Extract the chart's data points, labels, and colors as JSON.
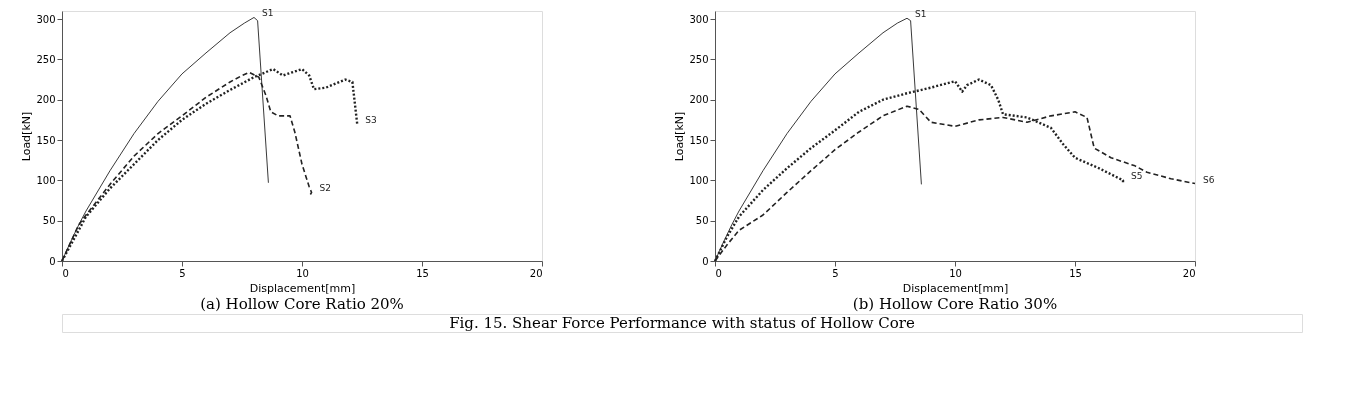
{
  "chart_data": [
    {
      "type": "line",
      "title": "(a)  Hollow  Core  Ratio  20%",
      "xlabel": "Displacement[mm]",
      "ylabel": "Load[kN]",
      "xlim": [
        0,
        20
      ],
      "ylim": [
        0,
        310
      ],
      "xticks": [
        0,
        5,
        10,
        15,
        20
      ],
      "yticks": [
        0,
        50,
        100,
        150,
        200,
        250,
        300
      ],
      "grid": false,
      "marker": "none",
      "series": [
        {
          "name": "S1",
          "color": "#222222",
          "line_style": "solid",
          "x": [
            0,
            0.3,
            0.7,
            1,
            2,
            3,
            4,
            5,
            6,
            7,
            7.6,
            8,
            8.15,
            8.6
          ],
          "values": [
            0,
            20,
            45,
            62,
            112,
            158,
            198,
            232,
            258,
            283,
            295,
            302,
            298,
            97
          ]
        },
        {
          "name": "S2",
          "color": "#222222",
          "line_style": "dashed",
          "x": [
            0,
            0.7,
            1,
            2,
            3,
            4,
            5,
            6,
            7,
            7.5,
            7.8,
            8.2,
            8.5,
            8.7,
            9,
            9.5,
            9.7,
            10,
            10.3,
            10.4,
            10.3
          ],
          "values": [
            0,
            45,
            57,
            95,
            130,
            158,
            180,
            203,
            222,
            230,
            234,
            228,
            205,
            185,
            180,
            180,
            160,
            120,
            92,
            85,
            80
          ]
        },
        {
          "name": "S3",
          "color": "#222222",
          "line_style": "dotted",
          "x": [
            0,
            1,
            2,
            3,
            4,
            5,
            6,
            7,
            8,
            8.8,
            9.2,
            10,
            10.3,
            10.5,
            11,
            11.8,
            12.1,
            12.3
          ],
          "values": [
            0,
            55,
            90,
            120,
            150,
            175,
            195,
            212,
            228,
            238,
            230,
            238,
            230,
            213,
            215,
            225,
            222,
            170
          ]
        }
      ]
    },
    {
      "type": "line",
      "title": "(b)  Hollow  Core  Ratio  30%",
      "xlabel": "Displacement[mm]",
      "ylabel": "Load[kN]",
      "xlim": [
        0,
        20
      ],
      "ylim": [
        0,
        310
      ],
      "xticks": [
        0,
        5,
        10,
        15,
        20
      ],
      "yticks": [
        0,
        50,
        100,
        150,
        200,
        250,
        300
      ],
      "grid": false,
      "marker": "none",
      "annotations": [
        "Fig.  15.  Shear  Force  Performance  with  status  of  Hollow  Core"
      ],
      "series": [
        {
          "name": "S1",
          "color": "#222222",
          "line_style": "solid",
          "x": [
            0,
            0.3,
            0.7,
            1,
            2,
            3,
            4,
            5,
            6,
            7,
            7.6,
            8,
            8.15,
            8.6
          ],
          "values": [
            0,
            20,
            45,
            62,
            112,
            158,
            198,
            232,
            258,
            283,
            295,
            301,
            298,
            95
          ]
        },
        {
          "name": "S5",
          "color": "#222222",
          "line_style": "dotted",
          "x": [
            0,
            0.5,
            1,
            2,
            3,
            4,
            5,
            6,
            7,
            8,
            9,
            10,
            10.3,
            10.5,
            11,
            11.5,
            11.8,
            12,
            13,
            14,
            14.5,
            15,
            16,
            17,
            17
          ],
          "values": [
            0,
            30,
            55,
            88,
            115,
            140,
            162,
            185,
            200,
            208,
            215,
            223,
            210,
            218,
            225,
            218,
            200,
            182,
            178,
            165,
            145,
            128,
            115,
            100,
            97
          ]
        },
        {
          "name": "S6",
          "color": "#222222",
          "line_style": "dashed",
          "x": [
            0,
            0.5,
            1,
            2,
            3,
            4,
            5,
            6,
            7,
            8,
            8.5,
            9,
            10,
            11,
            12,
            13,
            14,
            15,
            15.5,
            15.8,
            16.5,
            17.5,
            18,
            19,
            20
          ],
          "values": [
            0,
            20,
            38,
            57,
            85,
            112,
            138,
            160,
            180,
            192,
            188,
            172,
            167,
            175,
            178,
            172,
            180,
            185,
            178,
            140,
            128,
            118,
            110,
            102,
            96
          ]
        }
      ]
    }
  ]
}
